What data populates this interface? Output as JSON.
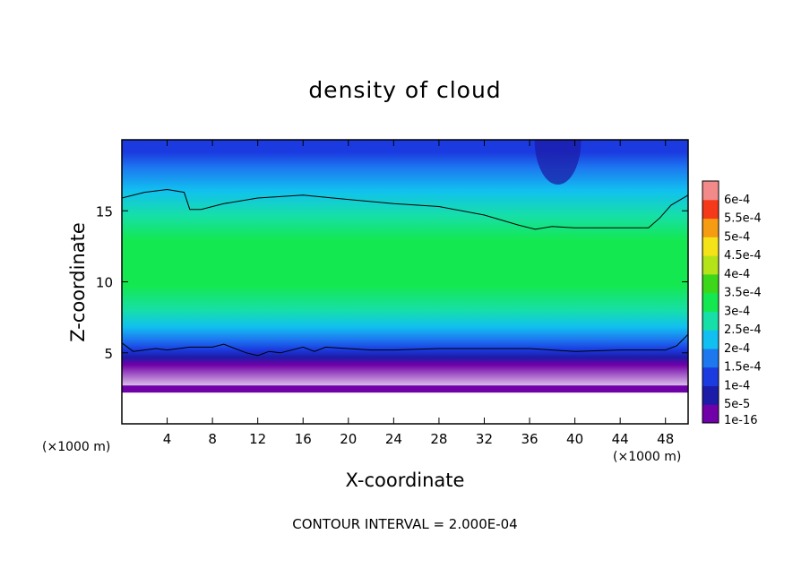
{
  "chart_data": {
    "type": "heatmap",
    "title": "density of cloud",
    "xlabel": "X-coordinate",
    "ylabel": "Z-coordinate",
    "x_unit_label": "(×1000 m)",
    "x_unit_label_right": "(×1000 m)",
    "footer": "CONTOUR INTERVAL = 2.000E-04",
    "xlim": [
      0,
      50
    ],
    "ylim": [
      0,
      20
    ],
    "x_ticks": [
      4,
      8,
      12,
      16,
      20,
      24,
      28,
      32,
      36,
      40,
      44,
      48
    ],
    "x_tick_labels": [
      "4",
      "8",
      "12",
      "16",
      "20",
      "24",
      "28",
      "32",
      "36",
      "40",
      "44",
      "48"
    ],
    "y_ticks": [
      5,
      10,
      15
    ],
    "y_tick_labels": [
      "5",
      "10",
      "15"
    ],
    "colorbar": {
      "labels": [
        "1e-16",
        "5e-5",
        "1e-4",
        "1.5e-4",
        "2e-4",
        "2.5e-4",
        "3e-4",
        "3.5e-4",
        "4e-4",
        "4.5e-4",
        "5e-4",
        "5.5e-4",
        "6e-4"
      ],
      "colors": [
        "#7000a8",
        "#1c1ca8",
        "#1b3be0",
        "#1d78f0",
        "#11c0f0",
        "#16dfa8",
        "#14e850",
        "#3cd71a",
        "#b5e31a",
        "#f3e318",
        "#f59c12",
        "#f5391b",
        "#f38a8a"
      ]
    },
    "contour_level": 0.0002,
    "upper_contour": {
      "x": [
        0,
        2,
        4,
        5.5,
        6,
        7,
        9,
        12,
        16,
        20,
        24,
        28,
        32,
        35,
        36.5,
        38,
        40,
        44,
        46.5,
        47.5,
        48.5,
        50
      ],
      "z": [
        15.9,
        16.3,
        16.5,
        16.3,
        15.1,
        15.1,
        15.5,
        15.9,
        16.1,
        15.8,
        15.5,
        15.3,
        14.7,
        14.0,
        13.7,
        13.9,
        13.8,
        13.8,
        13.8,
        14.5,
        15.4,
        16.1
      ]
    },
    "lower_contour": {
      "x": [
        0,
        1,
        2,
        3,
        4,
        6,
        8,
        9,
        11,
        12,
        13,
        14,
        16,
        17,
        18,
        20,
        22,
        24,
        28,
        32,
        36,
        40,
        44,
        48,
        49,
        50
      ],
      "z": [
        5.7,
        5.1,
        5.2,
        5.3,
        5.2,
        5.4,
        5.4,
        5.6,
        5.0,
        4.8,
        5.1,
        5.0,
        5.4,
        5.1,
        5.4,
        5.3,
        5.2,
        5.2,
        5.3,
        5.3,
        5.3,
        5.1,
        5.2,
        5.2,
        5.5,
        6.3
      ]
    },
    "cloud_base_z": 2.2,
    "field_profile": [
      {
        "z": 0.0,
        "band": null
      },
      {
        "z": 2.2,
        "band": 0
      },
      {
        "z": 2.8,
        "band": 1
      },
      {
        "z": 3.4,
        "band": 2
      },
      {
        "z": 4.2,
        "band": 3
      },
      {
        "z": 5.2,
        "band": 4
      },
      {
        "z": 6.5,
        "band": 5
      },
      {
        "z": 8.5,
        "band": 6
      },
      {
        "z": 12.0,
        "band": 6
      },
      {
        "z": 14.0,
        "band": 5
      },
      {
        "z": 16.0,
        "band": 4
      },
      {
        "z": 17.8,
        "band": 3
      },
      {
        "z": 19.0,
        "band": 2
      },
      {
        "z": 20.0,
        "band": 2
      }
    ]
  }
}
